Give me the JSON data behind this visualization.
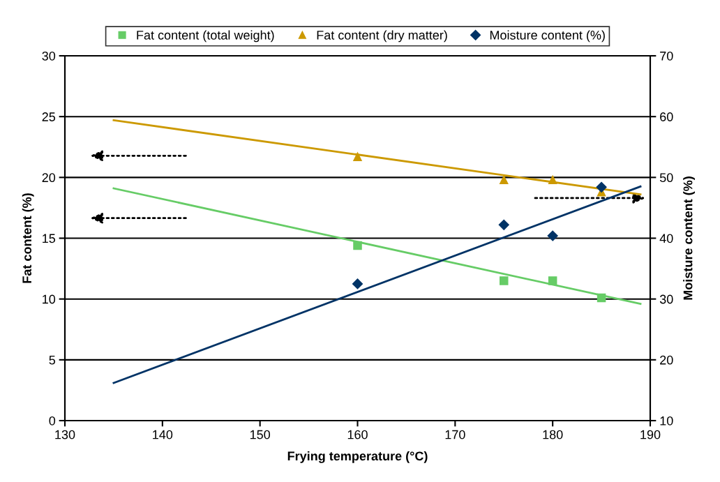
{
  "chart_data": {
    "type": "scatter",
    "xlabel": "Frying temperature (°C)",
    "ylabel": "Fat content (%)",
    "y2label": "Moisture content (%)",
    "xlim": [
      130,
      190
    ],
    "xticks": [
      130,
      140,
      150,
      160,
      170,
      180,
      190
    ],
    "ylim": [
      0,
      30
    ],
    "yticks": [
      0,
      5,
      10,
      15,
      20,
      25,
      30
    ],
    "y2lim": [
      10,
      70
    ],
    "y2ticks": [
      10,
      20,
      30,
      40,
      50,
      60,
      70
    ],
    "grid": "y",
    "legend": "top",
    "series": [
      {
        "name": "Fat content (total weight)",
        "color": "#66cc66",
        "marker": "square",
        "x": [
          160,
          175,
          180,
          185
        ],
        "values": [
          14.4,
          11.5,
          11.5,
          10.1
        ]
      },
      {
        "name": "Fat content (dry matter)",
        "color": "#cc9900",
        "marker": "triangle",
        "x": [
          160,
          175,
          180,
          185
        ],
        "values": [
          21.7,
          19.8,
          19.8,
          18.8
        ]
      },
      {
        "name": "Moisture content (%)",
        "color": "#003366",
        "marker": "diamond",
        "axis": "y2",
        "x": [
          160,
          175,
          180,
          185
        ],
        "values": [
          32.5,
          42.2,
          40.4,
          48.4
        ]
      },
      {
        "type": "line",
        "color": "#66cc66",
        "x": [
          135,
          189
        ],
        "values": [
          19.1,
          9.6
        ]
      },
      {
        "type": "line",
        "color": "#cc9900",
        "x": [
          135,
          189
        ],
        "values": [
          24.7,
          18.6
        ]
      },
      {
        "type": "line",
        "color": "#003366",
        "axis": "y2",
        "x": [
          135,
          189
        ],
        "values": [
          16.2,
          48.5
        ]
      }
    ]
  }
}
